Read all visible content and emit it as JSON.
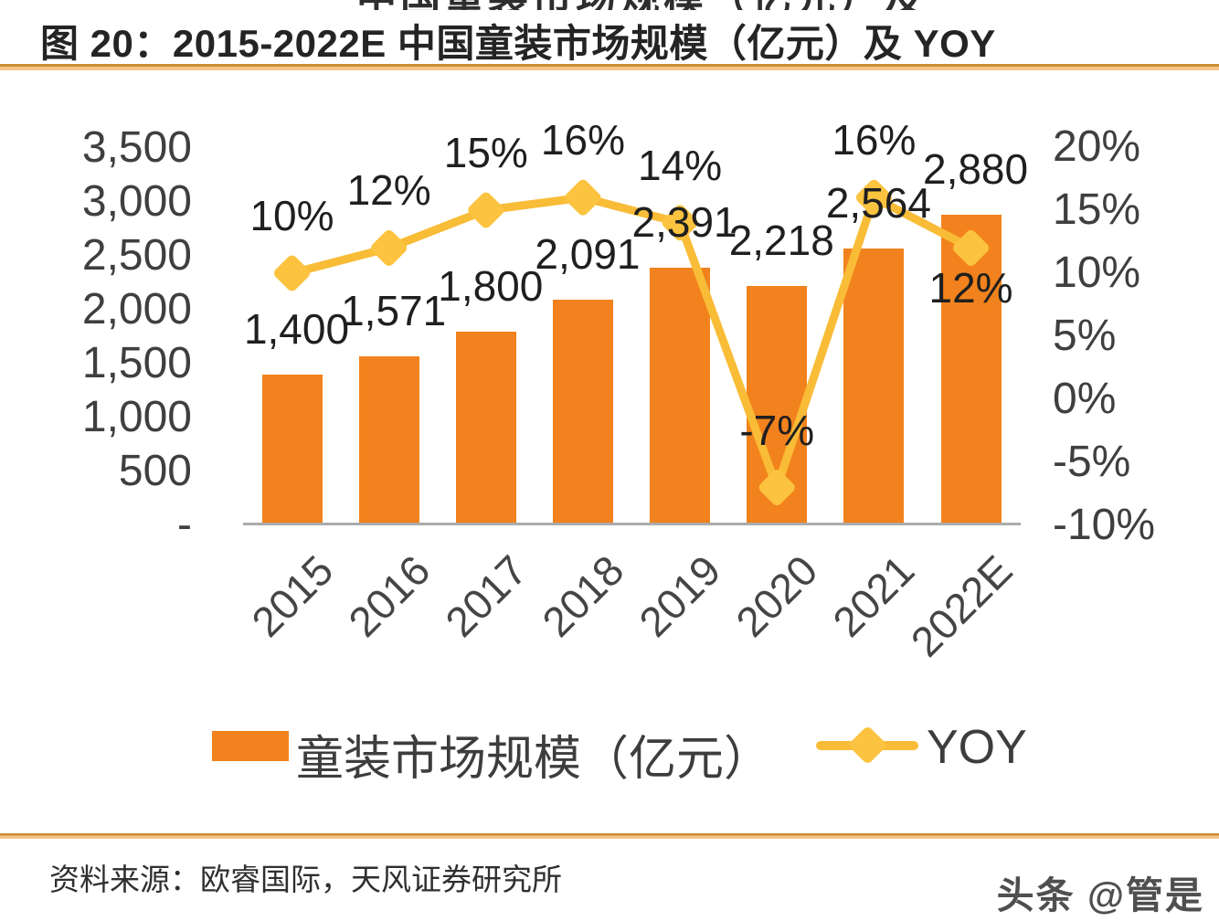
{
  "header": {
    "title": "图 20：2015-2022E 中国童装市场规模（亿元）及 YOY",
    "cropped_top_text": "中国童装市场规模（亿元）及"
  },
  "chart_data": {
    "type": "bar",
    "subtype": "bar+line combo",
    "categories": [
      "2015",
      "2016",
      "2017",
      "2018",
      "2019",
      "2020",
      "2021",
      "2022E"
    ],
    "series": [
      {
        "name": "童装市场规模（亿元）",
        "type": "bar",
        "axis": "left",
        "values": [
          1400,
          1571,
          1800,
          2091,
          2391,
          2218,
          2564,
          2880
        ],
        "labels": [
          "1,400",
          "1,571",
          "1,800",
          "2,091",
          "2,391",
          "2,218",
          "2,564",
          "2,880"
        ]
      },
      {
        "name": "YOY",
        "type": "line",
        "axis": "right",
        "values": [
          10,
          12,
          15,
          16,
          14,
          -7,
          16,
          12
        ],
        "labels": [
          "10%",
          "12%",
          "15%",
          "16%",
          "14%",
          "-7%",
          "16%",
          "12%"
        ],
        "label_positions": [
          "above",
          "above",
          "above",
          "above",
          "above",
          "above",
          "above",
          "below"
        ]
      }
    ],
    "left_axis": {
      "min": 0,
      "max": 3500,
      "tick_values": [
        3500,
        3000,
        2500,
        2000,
        1500,
        1000,
        500,
        0
      ],
      "tick_labels": [
        "3,500",
        "3,000",
        "2,500",
        "2,000",
        "1,500",
        "1,000",
        "500",
        "-"
      ]
    },
    "right_axis": {
      "min": -10,
      "max": 20,
      "tick_values": [
        20,
        15,
        10,
        5,
        0,
        -5,
        -10
      ],
      "tick_labels": [
        "20%",
        "15%",
        "10%",
        "5%",
        "0%",
        "-5%",
        "-10%"
      ]
    },
    "grid": "off",
    "legend_position": "bottom",
    "colors": {
      "bar": "#f2821d",
      "line": "#f9bc37",
      "marker": "#fbc33f",
      "axis_text": "#3f3f3f",
      "baseline": "#ababab",
      "accent_rule": "#cd8c33"
    }
  },
  "legend": {
    "items": [
      {
        "label": "童装市场规模（亿元）",
        "swatch": "bar"
      },
      {
        "label": "YOY",
        "swatch": "line"
      }
    ]
  },
  "footer": {
    "source": "资料来源：欧睿国际，天风证券研究所",
    "watermark": "头条 @管是"
  }
}
